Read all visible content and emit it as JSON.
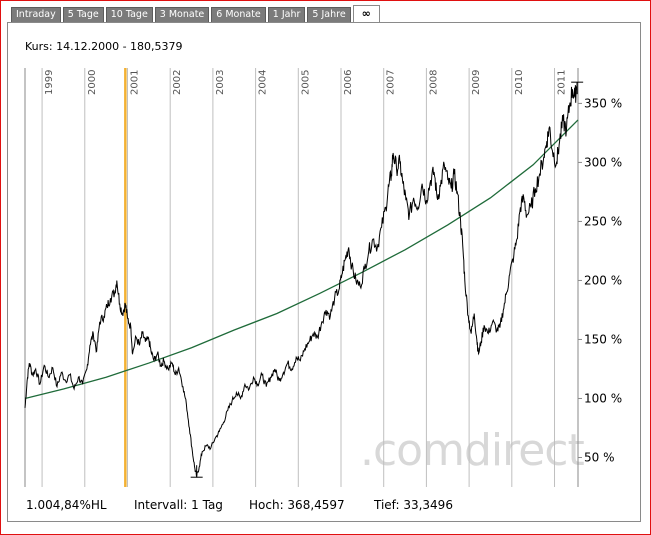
{
  "tabs": [
    {
      "label": "Intraday",
      "active": false
    },
    {
      "label": "5 Tage",
      "active": false
    },
    {
      "label": "10 Tage",
      "active": false
    },
    {
      "label": "3 Monate",
      "active": false
    },
    {
      "label": "6 Monate",
      "active": false
    },
    {
      "label": "1 Jahr",
      "active": false
    },
    {
      "label": "5 Jahre",
      "active": false
    },
    {
      "label": "∞",
      "active": true
    }
  ],
  "kurs_label": "Kurs: 14.12.2000 - 180,5379",
  "watermark": ".comdirect",
  "footer": {
    "perf": "1.004,84%HL",
    "intervall": "Intervall: 1 Tag",
    "hoch": "Hoch: 368,4597",
    "tief": "Tief: 33,3496"
  },
  "colors": {
    "price_line": "#000000",
    "trend_line": "#1f6b3a",
    "marker_line": "#f3b132",
    "grid": "#bfbfbf"
  },
  "chart_data": {
    "type": "line",
    "title": "",
    "xlabel": "",
    "ylabel": "",
    "x_tick_labels": [
      "1999",
      "2000",
      "2001",
      "2002",
      "2003",
      "2004",
      "2005",
      "2006",
      "2007",
      "2008",
      "2009",
      "2010",
      "2011"
    ],
    "y_tick_labels": [
      "50 %",
      "100 %",
      "150 %",
      "200 %",
      "250 %",
      "300 %",
      "350 %"
    ],
    "y_ticks": [
      50,
      100,
      150,
      200,
      250,
      300,
      350
    ],
    "ylim": [
      25,
      380
    ],
    "xlim": [
      1998.6,
      2011.55
    ],
    "grid": "vertical",
    "legend": "none",
    "marker": {
      "x": 2000.95,
      "label": "14.12.2000"
    },
    "series": [
      {
        "points": [
          [
            1998.6,
            92
          ],
          [
            1998.65,
            115
          ],
          [
            1998.7,
            130
          ],
          [
            1998.78,
            120
          ],
          [
            1998.85,
            125
          ],
          [
            1998.95,
            112
          ],
          [
            1999.05,
            128
          ],
          [
            1999.15,
            118
          ],
          [
            1999.25,
            126
          ],
          [
            1999.35,
            110
          ],
          [
            1999.45,
            122
          ],
          [
            1999.55,
            115
          ],
          [
            1999.65,
            120
          ],
          [
            1999.75,
            108
          ],
          [
            1999.85,
            118
          ],
          [
            1999.95,
            112
          ],
          [
            2000.05,
            125
          ],
          [
            2000.12,
            145
          ],
          [
            2000.2,
            155
          ],
          [
            2000.28,
            140
          ],
          [
            2000.35,
            165
          ],
          [
            2000.45,
            170
          ],
          [
            2000.52,
            178
          ],
          [
            2000.6,
            185
          ],
          [
            2000.7,
            190
          ],
          [
            2000.75,
            200
          ],
          [
            2000.82,
            180
          ],
          [
            2000.88,
            172
          ],
          [
            2000.95,
            180
          ],
          [
            2001.0,
            168
          ],
          [
            2001.08,
            160
          ],
          [
            2001.12,
            138
          ],
          [
            2001.2,
            152
          ],
          [
            2001.28,
            145
          ],
          [
            2001.35,
            155
          ],
          [
            2001.42,
            148
          ],
          [
            2001.5,
            150
          ],
          [
            2001.55,
            140
          ],
          [
            2001.62,
            132
          ],
          [
            2001.7,
            138
          ],
          [
            2001.78,
            128
          ],
          [
            2001.85,
            132
          ],
          [
            2001.95,
            125
          ],
          [
            2002.05,
            130
          ],
          [
            2002.12,
            120
          ],
          [
            2002.2,
            126
          ],
          [
            2002.3,
            110
          ],
          [
            2002.38,
            95
          ],
          [
            2002.45,
            75
          ],
          [
            2002.52,
            55
          ],
          [
            2002.58,
            40
          ],
          [
            2002.62,
            34
          ],
          [
            2002.68,
            42
          ],
          [
            2002.75,
            55
          ],
          [
            2002.85,
            60
          ],
          [
            2002.95,
            58
          ],
          [
            2003.05,
            66
          ],
          [
            2003.15,
            72
          ],
          [
            2003.25,
            80
          ],
          [
            2003.35,
            90
          ],
          [
            2003.45,
            98
          ],
          [
            2003.55,
            105
          ],
          [
            2003.65,
            100
          ],
          [
            2003.75,
            112
          ],
          [
            2003.85,
            108
          ],
          [
            2003.95,
            118
          ],
          [
            2004.05,
            112
          ],
          [
            2004.15,
            120
          ],
          [
            2004.25,
            110
          ],
          [
            2004.35,
            118
          ],
          [
            2004.45,
            125
          ],
          [
            2004.55,
            115
          ],
          [
            2004.65,
            122
          ],
          [
            2004.75,
            130
          ],
          [
            2004.85,
            125
          ],
          [
            2004.95,
            135
          ],
          [
            2005.05,
            132
          ],
          [
            2005.15,
            142
          ],
          [
            2005.25,
            148
          ],
          [
            2005.35,
            155
          ],
          [
            2005.45,
            152
          ],
          [
            2005.55,
            165
          ],
          [
            2005.65,
            175
          ],
          [
            2005.75,
            170
          ],
          [
            2005.85,
            185
          ],
          [
            2005.95,
            192
          ],
          [
            2006.02,
            205
          ],
          [
            2006.1,
            218
          ],
          [
            2006.18,
            228
          ],
          [
            2006.25,
            212
          ],
          [
            2006.35,
            200
          ],
          [
            2006.45,
            195
          ],
          [
            2006.55,
            210
          ],
          [
            2006.65,
            225
          ],
          [
            2006.75,
            235
          ],
          [
            2006.85,
            228
          ],
          [
            2006.95,
            245
          ],
          [
            2007.05,
            262
          ],
          [
            2007.12,
            280
          ],
          [
            2007.18,
            290
          ],
          [
            2007.22,
            308
          ],
          [
            2007.3,
            295
          ],
          [
            2007.38,
            300
          ],
          [
            2007.45,
            282
          ],
          [
            2007.52,
            268
          ],
          [
            2007.6,
            255
          ],
          [
            2007.7,
            270
          ],
          [
            2007.8,
            262
          ],
          [
            2007.9,
            282
          ],
          [
            2008.0,
            268
          ],
          [
            2008.1,
            285
          ],
          [
            2008.18,
            292
          ],
          [
            2008.25,
            270
          ],
          [
            2008.33,
            280
          ],
          [
            2008.42,
            298
          ],
          [
            2008.5,
            285
          ],
          [
            2008.58,
            278
          ],
          [
            2008.65,
            290
          ],
          [
            2008.72,
            275
          ],
          [
            2008.8,
            250
          ],
          [
            2008.85,
            230
          ],
          [
            2008.9,
            200
          ],
          [
            2008.98,
            170
          ],
          [
            2009.05,
            155
          ],
          [
            2009.12,
            172
          ],
          [
            2009.18,
            150
          ],
          [
            2009.22,
            138
          ],
          [
            2009.28,
            148
          ],
          [
            2009.35,
            162
          ],
          [
            2009.45,
            155
          ],
          [
            2009.55,
            165
          ],
          [
            2009.65,
            158
          ],
          [
            2009.72,
            160
          ],
          [
            2009.8,
            175
          ],
          [
            2009.88,
            190
          ],
          [
            2009.95,
            205
          ],
          [
            2010.05,
            222
          ],
          [
            2010.12,
            235
          ],
          [
            2010.2,
            262
          ],
          [
            2010.28,
            270
          ],
          [
            2010.35,
            255
          ],
          [
            2010.45,
            262
          ],
          [
            2010.55,
            278
          ],
          [
            2010.65,
            290
          ],
          [
            2010.75,
            305
          ],
          [
            2010.82,
            318
          ],
          [
            2010.88,
            330
          ],
          [
            2010.95,
            310
          ],
          [
            2011.05,
            300
          ],
          [
            2011.12,
            318
          ],
          [
            2011.2,
            335
          ],
          [
            2011.28,
            328
          ],
          [
            2011.35,
            348
          ],
          [
            2011.42,
            362
          ],
          [
            2011.48,
            355
          ],
          [
            2011.53,
            368
          ]
        ]
      },
      {
        "points": [
          [
            1998.6,
            100
          ],
          [
            1999.5,
            108
          ],
          [
            2000.5,
            118
          ],
          [
            2001.5,
            130
          ],
          [
            2002.5,
            143
          ],
          [
            2003.5,
            158
          ],
          [
            2004.5,
            172
          ],
          [
            2005.5,
            189
          ],
          [
            2006.5,
            207
          ],
          [
            2007.5,
            226
          ],
          [
            2008.5,
            247
          ],
          [
            2009.5,
            270
          ],
          [
            2010.5,
            298
          ],
          [
            2011.55,
            336
          ]
        ]
      }
    ]
  }
}
